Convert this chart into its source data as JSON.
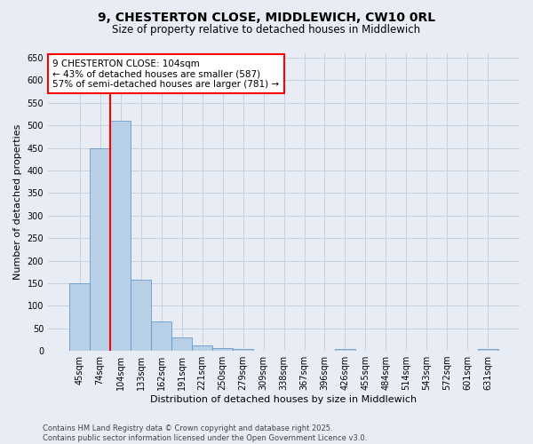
{
  "title": "9, CHESTERTON CLOSE, MIDDLEWICH, CW10 0RL",
  "subtitle": "Size of property relative to detached houses in Middlewich",
  "xlabel": "Distribution of detached houses by size in Middlewich",
  "ylabel": "Number of detached properties",
  "categories": [
    "45sqm",
    "74sqm",
    "104sqm",
    "133sqm",
    "162sqm",
    "191sqm",
    "221sqm",
    "250sqm",
    "279sqm",
    "309sqm",
    "338sqm",
    "367sqm",
    "396sqm",
    "426sqm",
    "455sqm",
    "484sqm",
    "514sqm",
    "543sqm",
    "572sqm",
    "601sqm",
    "631sqm"
  ],
  "values": [
    150,
    450,
    510,
    158,
    65,
    30,
    12,
    7,
    4,
    0,
    0,
    0,
    0,
    5,
    0,
    0,
    0,
    0,
    0,
    0,
    5
  ],
  "bar_color": "#b8cfe8",
  "bar_edge_color": "#6699cc",
  "red_line_index": 2,
  "annotation_line1": "9 CHESTERTON CLOSE: 104sqm",
  "annotation_line2": "← 43% of detached houses are smaller (587)",
  "annotation_line3": "57% of semi-detached houses are larger (781) →",
  "annotation_box_color": "white",
  "annotation_box_edge": "red",
  "ylim_max": 660,
  "yticks": [
    0,
    50,
    100,
    150,
    200,
    250,
    300,
    350,
    400,
    450,
    500,
    550,
    600,
    650
  ],
  "grid_color": "#c8d0dc",
  "bg_color": "#e8edf5",
  "footer_line1": "Contains HM Land Registry data © Crown copyright and database right 2025.",
  "footer_line2": "Contains public sector information licensed under the Open Government Licence v3.0.",
  "title_fontsize": 10,
  "subtitle_fontsize": 8.5,
  "axis_label_fontsize": 8,
  "tick_fontsize": 7,
  "annotation_fontsize": 7.5,
  "footer_fontsize": 6
}
